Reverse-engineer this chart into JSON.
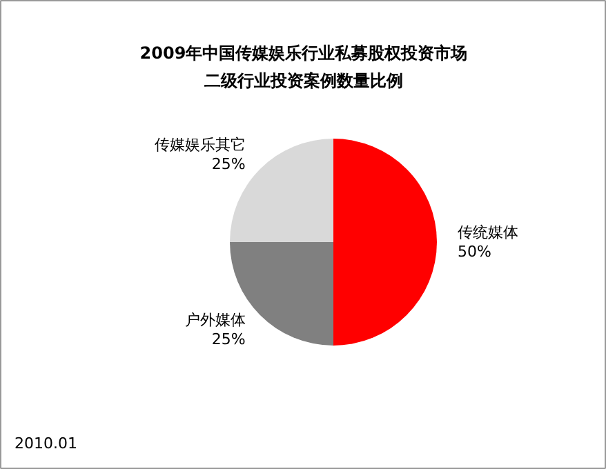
{
  "chart_data": {
    "type": "pie",
    "title": "2009年中国传媒娱乐行业私募股权投资市场",
    "subtitle": "二级行业投资案例数量比例",
    "categories": [
      "传统媒体",
      "户外媒体",
      "传媒娱乐其它"
    ],
    "values": [
      50,
      25,
      25
    ],
    "colors": [
      "#ff0000",
      "#808080",
      "#d9d9d9"
    ],
    "value_labels": [
      "50%",
      "25%",
      "25%"
    ],
    "annotations": [
      "2010.01"
    ]
  }
}
